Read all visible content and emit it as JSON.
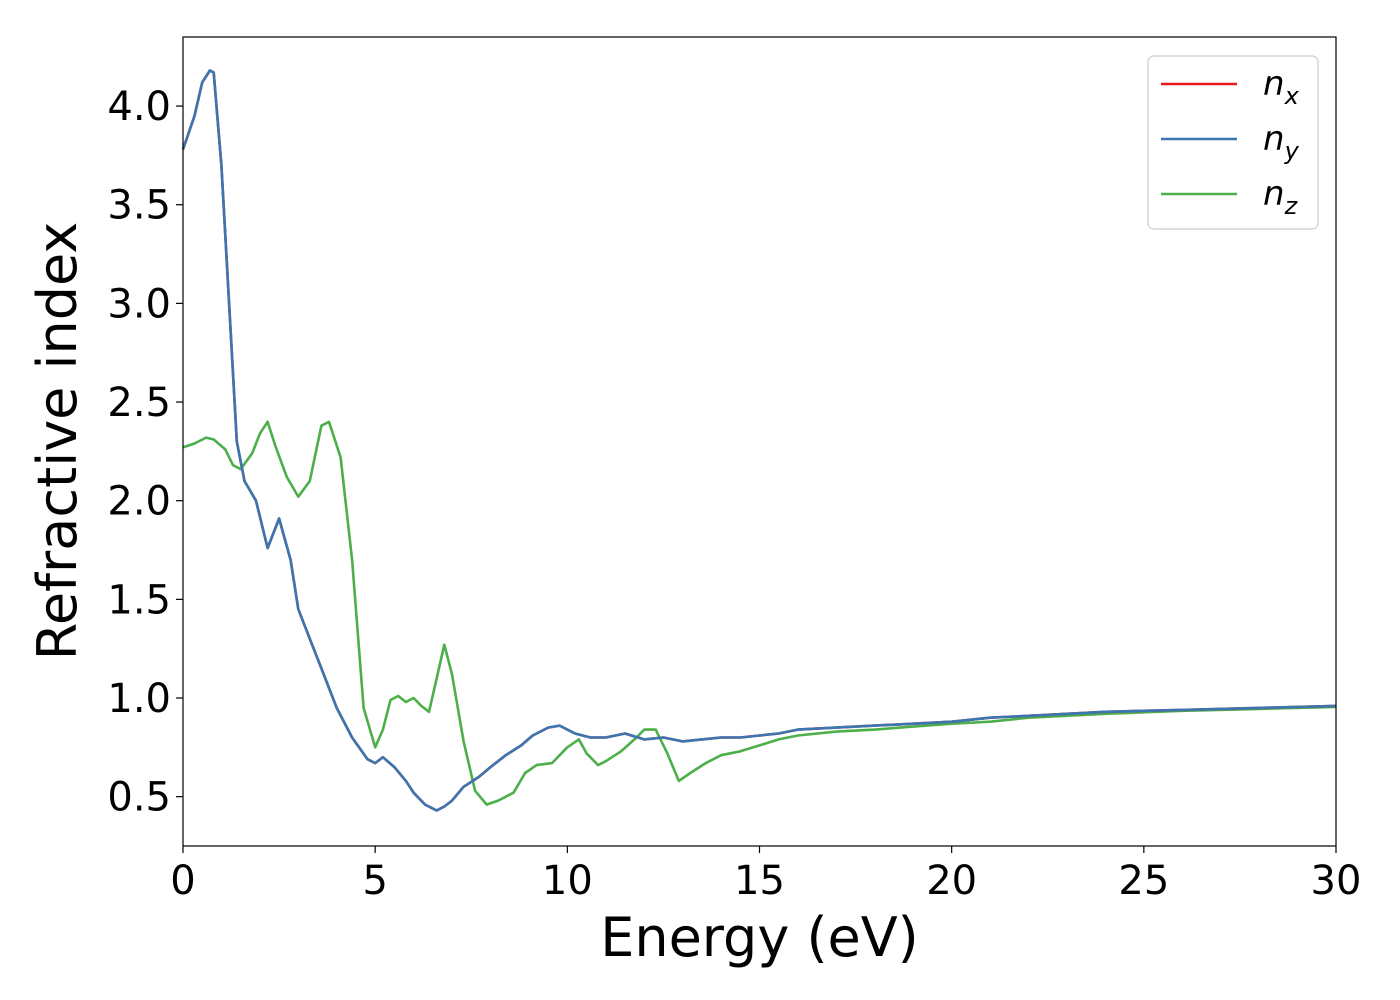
{
  "chart_data": {
    "type": "line",
    "xlabel": "Energy (eV)",
    "ylabel": "Refractive index",
    "xlim": [
      0,
      30
    ],
    "ylim": [
      0.25,
      4.35
    ],
    "x_ticks": [
      "0",
      "5",
      "10",
      "15",
      "20",
      "25",
      "30"
    ],
    "y_ticks": [
      "0.5",
      "1.0",
      "1.5",
      "2.0",
      "2.5",
      "3.0",
      "3.5",
      "4.0"
    ],
    "grid": false,
    "legend_position": "upper-right",
    "series": [
      {
        "name": "n",
        "subscript": "x",
        "color": "#e41a1c",
        "x": [
          0,
          0.3,
          0.5,
          0.7,
          0.8,
          1.0,
          1.2,
          1.4,
          1.6,
          1.9,
          2.2,
          2.5,
          2.8,
          3.0,
          3.3,
          3.6,
          4.0,
          4.4,
          4.8,
          5.0,
          5.2,
          5.5,
          5.8,
          6.0,
          6.3,
          6.6,
          6.8,
          7.0,
          7.3,
          7.7,
          8.0,
          8.4,
          8.8,
          9.1,
          9.5,
          9.8,
          10.2,
          10.6,
          11.0,
          11.5,
          12.0,
          12.5,
          13.0,
          13.5,
          14.0,
          14.5,
          15.0,
          15.5,
          16.0,
          17.0,
          18.0,
          19.0,
          20.0,
          21.0,
          22.0,
          23.0,
          24.0,
          25.0,
          26.0,
          27.0,
          28.0,
          29.0,
          30.0
        ],
        "y": [
          3.78,
          3.95,
          4.12,
          4.18,
          4.17,
          3.7,
          3.0,
          2.3,
          2.1,
          2.0,
          1.76,
          1.91,
          1.7,
          1.45,
          1.3,
          1.15,
          0.95,
          0.8,
          0.69,
          0.67,
          0.7,
          0.65,
          0.58,
          0.52,
          0.46,
          0.43,
          0.45,
          0.48,
          0.55,
          0.6,
          0.65,
          0.71,
          0.76,
          0.81,
          0.85,
          0.86,
          0.82,
          0.8,
          0.8,
          0.82,
          0.79,
          0.8,
          0.78,
          0.79,
          0.8,
          0.8,
          0.81,
          0.82,
          0.84,
          0.85,
          0.86,
          0.87,
          0.88,
          0.9,
          0.91,
          0.92,
          0.93,
          0.935,
          0.94,
          0.945,
          0.95,
          0.955,
          0.96
        ]
      },
      {
        "name": "n",
        "subscript": "y",
        "color": "#3a76b0",
        "x": [
          0,
          0.3,
          0.5,
          0.7,
          0.8,
          1.0,
          1.2,
          1.4,
          1.6,
          1.9,
          2.2,
          2.5,
          2.8,
          3.0,
          3.3,
          3.6,
          4.0,
          4.4,
          4.8,
          5.0,
          5.2,
          5.5,
          5.8,
          6.0,
          6.3,
          6.6,
          6.8,
          7.0,
          7.3,
          7.7,
          8.0,
          8.4,
          8.8,
          9.1,
          9.5,
          9.8,
          10.2,
          10.6,
          11.0,
          11.5,
          12.0,
          12.5,
          13.0,
          13.5,
          14.0,
          14.5,
          15.0,
          15.5,
          16.0,
          17.0,
          18.0,
          19.0,
          20.0,
          21.0,
          22.0,
          23.0,
          24.0,
          25.0,
          26.0,
          27.0,
          28.0,
          29.0,
          30.0
        ],
        "y": [
          3.78,
          3.95,
          4.12,
          4.18,
          4.17,
          3.7,
          3.0,
          2.3,
          2.1,
          2.0,
          1.76,
          1.91,
          1.7,
          1.45,
          1.3,
          1.15,
          0.95,
          0.8,
          0.69,
          0.67,
          0.7,
          0.65,
          0.58,
          0.52,
          0.46,
          0.43,
          0.45,
          0.48,
          0.55,
          0.6,
          0.65,
          0.71,
          0.76,
          0.81,
          0.85,
          0.86,
          0.82,
          0.8,
          0.8,
          0.82,
          0.79,
          0.8,
          0.78,
          0.79,
          0.8,
          0.8,
          0.81,
          0.82,
          0.84,
          0.85,
          0.86,
          0.87,
          0.88,
          0.9,
          0.91,
          0.92,
          0.93,
          0.935,
          0.94,
          0.945,
          0.95,
          0.955,
          0.96
        ]
      },
      {
        "name": "n",
        "subscript": "z",
        "color": "#4daf4a",
        "x": [
          0,
          0.3,
          0.6,
          0.8,
          1.1,
          1.3,
          1.5,
          1.8,
          2.0,
          2.2,
          2.4,
          2.7,
          3.0,
          3.3,
          3.6,
          3.8,
          4.1,
          4.4,
          4.7,
          5.0,
          5.2,
          5.4,
          5.6,
          5.8,
          6.0,
          6.2,
          6.4,
          6.6,
          6.8,
          7.0,
          7.3,
          7.6,
          7.9,
          8.2,
          8.6,
          8.9,
          9.2,
          9.6,
          10.0,
          10.3,
          10.5,
          10.8,
          11.0,
          11.4,
          11.8,
          12.0,
          12.3,
          12.6,
          12.9,
          13.2,
          13.6,
          14.0,
          14.5,
          15.0,
          15.5,
          16.0,
          17.0,
          18.0,
          19.0,
          20.0,
          21.0,
          22.0,
          24.0,
          26.0,
          28.0,
          30.0
        ],
        "y": [
          2.27,
          2.29,
          2.32,
          2.31,
          2.26,
          2.18,
          2.16,
          2.24,
          2.34,
          2.4,
          2.28,
          2.12,
          2.02,
          2.1,
          2.38,
          2.4,
          2.22,
          1.7,
          0.95,
          0.75,
          0.84,
          0.99,
          1.01,
          0.98,
          1.0,
          0.96,
          0.93,
          1.1,
          1.27,
          1.12,
          0.78,
          0.53,
          0.46,
          0.48,
          0.52,
          0.62,
          0.66,
          0.67,
          0.75,
          0.79,
          0.72,
          0.66,
          0.68,
          0.73,
          0.8,
          0.84,
          0.84,
          0.72,
          0.58,
          0.62,
          0.67,
          0.71,
          0.73,
          0.76,
          0.79,
          0.81,
          0.83,
          0.84,
          0.855,
          0.87,
          0.88,
          0.9,
          0.92,
          0.935,
          0.945,
          0.955
        ]
      }
    ]
  }
}
